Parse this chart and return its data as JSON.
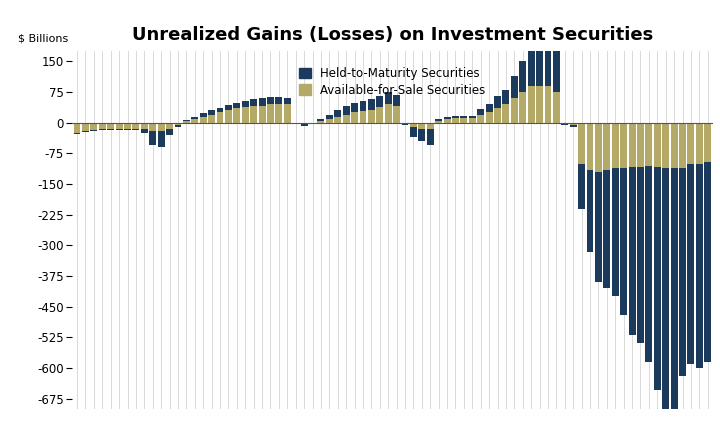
{
  "title": "Unrealized Gains (Losses) on Investment Securities",
  "ylabel": "$ Billions",
  "legend_htm": "Held-to-Maturity Securities",
  "legend_afs": "Available-for-Sale Securities",
  "color_htm": "#1b3a5c",
  "color_afs": "#b5a968",
  "ylim_min": -700,
  "ylim_max": 175,
  "yticks": [
    150,
    75,
    0,
    -75,
    -150,
    -225,
    -300,
    -375,
    -450,
    -525,
    -600,
    -675
  ],
  "background_color": "#ffffff",
  "grid_color": "#d3d3d3",
  "htm_values": [
    -2,
    -2,
    -2,
    -2,
    -2,
    -2,
    -2,
    -2,
    -10,
    -35,
    -40,
    -15,
    -5,
    2,
    5,
    8,
    10,
    12,
    14,
    14,
    15,
    17,
    18,
    18,
    17,
    16,
    -2,
    -5,
    -2,
    5,
    10,
    15,
    20,
    22,
    25,
    27,
    28,
    30,
    28,
    -5,
    -25,
    -30,
    -40,
    5,
    5,
    5,
    5,
    5,
    15,
    20,
    30,
    35,
    55,
    75,
    100,
    115,
    120,
    130,
    -5,
    -5,
    -110,
    -200,
    -270,
    -290,
    -315,
    -360,
    -410,
    -430,
    -480,
    -545,
    -630,
    -690,
    -510,
    -490,
    -500,
    -490
  ],
  "afs_values": [
    -25,
    -20,
    -18,
    -15,
    -15,
    -15,
    -15,
    -15,
    -15,
    -20,
    -20,
    -15,
    -5,
    5,
    10,
    15,
    20,
    25,
    30,
    35,
    38,
    40,
    42,
    45,
    45,
    45,
    0,
    -2,
    0,
    5,
    10,
    15,
    20,
    25,
    28,
    32,
    38,
    45,
    40,
    0,
    -10,
    -15,
    -15,
    5,
    10,
    12,
    12,
    12,
    18,
    25,
    35,
    45,
    60,
    75,
    90,
    90,
    90,
    75,
    0,
    -5,
    -100,
    -115,
    -120,
    -115,
    -110,
    -110,
    -108,
    -108,
    -105,
    -108,
    -110,
    -110,
    -110,
    -100,
    -100,
    -95
  ]
}
